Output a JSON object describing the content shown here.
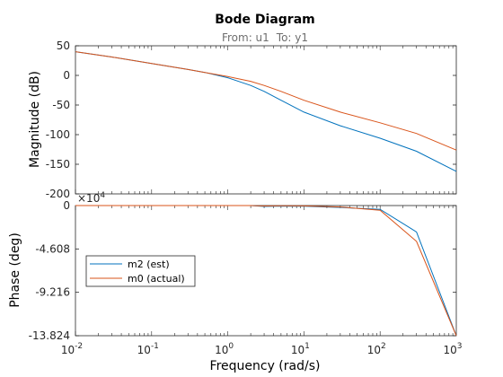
{
  "chart_data": {
    "type": "line",
    "title": "Bode Diagram",
    "subtitle_from_label": "From: u1",
    "subtitle_to_label": "To: y1",
    "xlabel": "Frequency  (rad/s)",
    "xscale": "log",
    "xlim": [
      0.01,
      1000
    ],
    "x_tick_labels": [
      {
        "base": "10",
        "exp": "-2",
        "value": 0.01
      },
      {
        "base": "10",
        "exp": "-1",
        "value": 0.1
      },
      {
        "base": "10",
        "exp": "0",
        "value": 1
      },
      {
        "base": "10",
        "exp": "1",
        "value": 10
      },
      {
        "base": "10",
        "exp": "2",
        "value": 100
      },
      {
        "base": "10",
        "exp": "3",
        "value": 1000
      }
    ],
    "magnitude": {
      "ylabel": "Magnitude (dB)",
      "ylim": [
        -200,
        50
      ],
      "y_tick_labels": [
        "50",
        "0",
        "-50",
        "-100",
        "-150",
        "-200"
      ],
      "y_ticks": [
        50,
        0,
        -50,
        -100,
        -150,
        -200
      ]
    },
    "phase": {
      "ylabel": "Phase (deg)",
      "ylim": [
        -138240,
        0
      ],
      "y_tick_labels": [
        "0",
        "-4.608",
        "-9.216",
        "-13.824"
      ],
      "y_ticks": [
        0,
        -46080,
        -92160,
        -138240
      ],
      "exponent_base": "×10",
      "exponent_power": "4"
    },
    "legend": {
      "placement": "middle-left"
    },
    "series": [
      {
        "name": "m2 (est)",
        "color": "#0072bd",
        "x": [
          0.01,
          0.03,
          0.1,
          0.3,
          0.5,
          1,
          2,
          3,
          5,
          10,
          30,
          100,
          300,
          1000
        ],
        "magnitude_db": [
          40,
          31,
          20,
          10,
          5,
          -4,
          -17,
          -27,
          -42,
          -62,
          -85,
          -106,
          -128,
          -162
        ],
        "phase": [
          0,
          0,
          0,
          0,
          0,
          0,
          0,
          -1000,
          -600,
          -800,
          -2000,
          -4000,
          -28000,
          -148000
        ]
      },
      {
        "name": "m0 (actual)",
        "color": "#d95319",
        "x": [
          0.01,
          0.03,
          0.1,
          0.3,
          0.5,
          1,
          2,
          3,
          5,
          10,
          30,
          100,
          300,
          1000
        ],
        "magnitude_db": [
          40,
          31,
          20,
          10,
          5,
          -2,
          -10,
          -17,
          -27,
          -42,
          -62,
          -80,
          -98,
          -126
        ],
        "phase": [
          0,
          0,
          0,
          0,
          0,
          0,
          0,
          -500,
          -300,
          -400,
          -1500,
          -5000,
          -38000,
          -188000
        ]
      }
    ]
  }
}
